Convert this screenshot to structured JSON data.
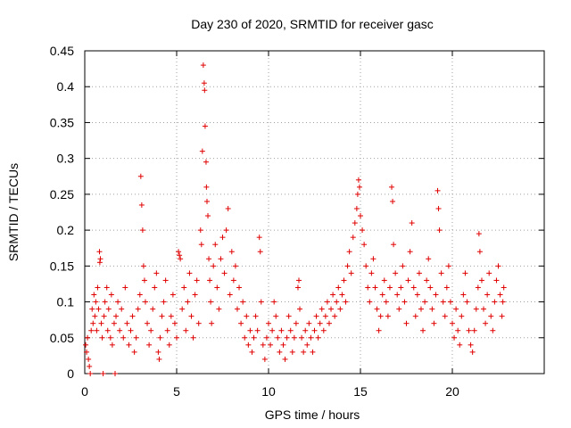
{
  "chart_data": {
    "type": "scatter",
    "title": "Day 230 of 2020, SRMTID for receiver gasc",
    "xlabel": "GPS time / hours",
    "ylabel": "SRMTID / TECUs",
    "xlim": [
      0,
      25
    ],
    "ylim": [
      0,
      0.45
    ],
    "xticks": [
      0,
      5,
      10,
      15,
      20
    ],
    "xtick_labels": [
      "0",
      "5",
      "10",
      "15",
      "20"
    ],
    "yticks": [
      0,
      0.05,
      0.1,
      0.15,
      0.2,
      0.25,
      0.3,
      0.35,
      0.4,
      0.45
    ],
    "ytick_labels": [
      "0",
      "0.05",
      "0.1",
      "0.15",
      "0.2",
      "0.25",
      "0.3",
      "0.35",
      "0.4",
      "0.45"
    ],
    "grid": true,
    "marker": "plus",
    "color": "#e00000",
    "series": [
      {
        "name": "SRMTID",
        "points": [
          [
            0.05,
            0.04
          ],
          [
            0.1,
            0.03
          ],
          [
            0.15,
            0.05
          ],
          [
            0.2,
            0.02
          ],
          [
            0.25,
            0.01
          ],
          [
            0.3,
            0.0
          ],
          [
            0.35,
            0.06
          ],
          [
            0.4,
            0.09
          ],
          [
            0.45,
            0.07
          ],
          [
            0.5,
            0.11
          ],
          [
            0.55,
            0.08
          ],
          [
            0.6,
            0.1
          ],
          [
            0.65,
            0.06
          ],
          [
            0.7,
            0.12
          ],
          [
            0.75,
            0.09
          ],
          [
            0.8,
            0.17
          ],
          [
            0.82,
            0.155
          ],
          [
            0.85,
            0.16
          ],
          [
            0.9,
            0.07
          ],
          [
            0.95,
            0.05
          ],
          [
            1.0,
            0.0
          ],
          [
            1.05,
            0.08
          ],
          [
            1.1,
            0.1
          ],
          [
            1.2,
            0.12
          ],
          [
            1.25,
            0.06
          ],
          [
            1.3,
            0.09
          ],
          [
            1.4,
            0.05
          ],
          [
            1.45,
            0.11
          ],
          [
            1.5,
            0.04
          ],
          [
            1.6,
            0.07
          ],
          [
            1.65,
            0.0
          ],
          [
            1.7,
            0.08
          ],
          [
            1.8,
            0.1
          ],
          [
            1.9,
            0.06
          ],
          [
            2.0,
            0.09
          ],
          [
            2.1,
            0.05
          ],
          [
            2.2,
            0.12
          ],
          [
            2.3,
            0.07
          ],
          [
            2.4,
            0.04
          ],
          [
            2.5,
            0.06
          ],
          [
            2.6,
            0.08
          ],
          [
            2.7,
            0.03
          ],
          [
            2.8,
            0.05
          ],
          [
            2.9,
            0.09
          ],
          [
            3.0,
            0.11
          ],
          [
            3.05,
            0.275
          ],
          [
            3.1,
            0.235
          ],
          [
            3.15,
            0.2
          ],
          [
            3.2,
            0.15
          ],
          [
            3.25,
            0.13
          ],
          [
            3.3,
            0.1
          ],
          [
            3.4,
            0.07
          ],
          [
            3.5,
            0.04
          ],
          [
            3.6,
            0.06
          ],
          [
            3.7,
            0.09
          ],
          [
            3.8,
            0.12
          ],
          [
            3.9,
            0.14
          ],
          [
            4.0,
            0.03
          ],
          [
            4.05,
            0.02
          ],
          [
            4.1,
            0.05
          ],
          [
            4.2,
            0.08
          ],
          [
            4.3,
            0.1
          ],
          [
            4.4,
            0.13
          ],
          [
            4.5,
            0.06
          ],
          [
            4.6,
            0.04
          ],
          [
            4.7,
            0.08
          ],
          [
            4.8,
            0.11
          ],
          [
            4.9,
            0.07
          ],
          [
            5.0,
            0.05
          ],
          [
            5.1,
            0.17
          ],
          [
            5.15,
            0.165
          ],
          [
            5.2,
            0.16
          ],
          [
            5.3,
            0.09
          ],
          [
            5.4,
            0.12
          ],
          [
            5.5,
            0.06
          ],
          [
            5.6,
            0.1
          ],
          [
            5.7,
            0.14
          ],
          [
            5.8,
            0.08
          ],
          [
            5.9,
            0.05
          ],
          [
            6.0,
            0.11
          ],
          [
            6.1,
            0.13
          ],
          [
            6.2,
            0.07
          ],
          [
            6.3,
            0.2
          ],
          [
            6.35,
            0.18
          ],
          [
            6.4,
            0.31
          ],
          [
            6.45,
            0.43
          ],
          [
            6.5,
            0.405
          ],
          [
            6.52,
            0.395
          ],
          [
            6.55,
            0.345
          ],
          [
            6.6,
            0.295
          ],
          [
            6.62,
            0.26
          ],
          [
            6.65,
            0.24
          ],
          [
            6.7,
            0.22
          ],
          [
            6.75,
            0.16
          ],
          [
            6.8,
            0.13
          ],
          [
            6.85,
            0.1
          ],
          [
            6.9,
            0.07
          ],
          [
            7.0,
            0.15
          ],
          [
            7.1,
            0.18
          ],
          [
            7.2,
            0.12
          ],
          [
            7.3,
            0.09
          ],
          [
            7.4,
            0.16
          ],
          [
            7.5,
            0.19
          ],
          [
            7.6,
            0.14
          ],
          [
            7.7,
            0.2
          ],
          [
            7.8,
            0.23
          ],
          [
            7.9,
            0.11
          ],
          [
            8.0,
            0.17
          ],
          [
            8.1,
            0.13
          ],
          [
            8.2,
            0.15
          ],
          [
            8.3,
            0.09
          ],
          [
            8.4,
            0.12
          ],
          [
            8.5,
            0.07
          ],
          [
            8.6,
            0.1
          ],
          [
            8.7,
            0.05
          ],
          [
            8.8,
            0.08
          ],
          [
            8.9,
            0.04
          ],
          [
            9.0,
            0.06
          ],
          [
            9.1,
            0.03
          ],
          [
            9.2,
            0.05
          ],
          [
            9.3,
            0.08
          ],
          [
            9.4,
            0.06
          ],
          [
            9.5,
            0.19
          ],
          [
            9.55,
            0.17
          ],
          [
            9.6,
            0.1
          ],
          [
            9.7,
            0.04
          ],
          [
            9.8,
            0.02
          ],
          [
            9.9,
            0.05
          ],
          [
            10.0,
            0.07
          ],
          [
            10.1,
            0.04
          ],
          [
            10.2,
            0.06
          ],
          [
            10.3,
            0.1
          ],
          [
            10.4,
            0.08
          ],
          [
            10.5,
            0.05
          ],
          [
            10.6,
            0.03
          ],
          [
            10.7,
            0.06
          ],
          [
            10.8,
            0.04
          ],
          [
            10.9,
            0.02
          ],
          [
            11.0,
            0.05
          ],
          [
            11.1,
            0.08
          ],
          [
            11.2,
            0.06
          ],
          [
            11.3,
            0.03
          ],
          [
            11.4,
            0.05
          ],
          [
            11.5,
            0.07
          ],
          [
            11.6,
            0.12
          ],
          [
            11.65,
            0.13
          ],
          [
            11.7,
            0.09
          ],
          [
            11.8,
            0.05
          ],
          [
            11.9,
            0.03
          ],
          [
            12.0,
            0.06
          ],
          [
            12.1,
            0.04
          ],
          [
            12.2,
            0.07
          ],
          [
            12.3,
            0.05
          ],
          [
            12.4,
            0.03
          ],
          [
            12.5,
            0.06
          ],
          [
            12.6,
            0.08
          ],
          [
            12.7,
            0.05
          ],
          [
            12.8,
            0.07
          ],
          [
            12.9,
            0.09
          ],
          [
            13.0,
            0.06
          ],
          [
            13.1,
            0.08
          ],
          [
            13.2,
            0.1
          ],
          [
            13.3,
            0.07
          ],
          [
            13.4,
            0.09
          ],
          [
            13.5,
            0.11
          ],
          [
            13.6,
            0.08
          ],
          [
            13.7,
            0.1
          ],
          [
            13.8,
            0.12
          ],
          [
            13.9,
            0.09
          ],
          [
            14.0,
            0.11
          ],
          [
            14.1,
            0.13
          ],
          [
            14.2,
            0.1
          ],
          [
            14.3,
            0.15
          ],
          [
            14.4,
            0.17
          ],
          [
            14.5,
            0.14
          ],
          [
            14.6,
            0.19
          ],
          [
            14.7,
            0.21
          ],
          [
            14.8,
            0.23
          ],
          [
            14.85,
            0.25
          ],
          [
            14.9,
            0.27
          ],
          [
            14.95,
            0.26
          ],
          [
            15.0,
            0.22
          ],
          [
            15.1,
            0.2
          ],
          [
            15.2,
            0.18
          ],
          [
            15.3,
            0.15
          ],
          [
            15.4,
            0.12
          ],
          [
            15.5,
            0.1
          ],
          [
            15.6,
            0.14
          ],
          [
            15.7,
            0.16
          ],
          [
            15.8,
            0.12
          ],
          [
            15.9,
            0.09
          ],
          [
            16.0,
            0.06
          ],
          [
            16.1,
            0.08
          ],
          [
            16.2,
            0.11
          ],
          [
            16.3,
            0.13
          ],
          [
            16.4,
            0.1
          ],
          [
            16.5,
            0.08
          ],
          [
            16.6,
            0.12
          ],
          [
            16.7,
            0.26
          ],
          [
            16.75,
            0.24
          ],
          [
            16.8,
            0.18
          ],
          [
            16.9,
            0.14
          ],
          [
            17.0,
            0.11
          ],
          [
            17.1,
            0.09
          ],
          [
            17.2,
            0.12
          ],
          [
            17.3,
            0.15
          ],
          [
            17.4,
            0.1
          ],
          [
            17.5,
            0.07
          ],
          [
            17.6,
            0.13
          ],
          [
            17.7,
            0.17
          ],
          [
            17.8,
            0.21
          ],
          [
            17.9,
            0.12
          ],
          [
            18.0,
            0.08
          ],
          [
            18.1,
            0.11
          ],
          [
            18.2,
            0.14
          ],
          [
            18.3,
            0.09
          ],
          [
            18.4,
            0.06
          ],
          [
            18.5,
            0.1
          ],
          [
            18.6,
            0.13
          ],
          [
            18.7,
            0.16
          ],
          [
            18.8,
            0.12
          ],
          [
            18.9,
            0.09
          ],
          [
            19.0,
            0.07
          ],
          [
            19.1,
            0.11
          ],
          [
            19.2,
            0.255
          ],
          [
            19.25,
            0.23
          ],
          [
            19.3,
            0.2
          ],
          [
            19.4,
            0.14
          ],
          [
            19.5,
            0.1
          ],
          [
            19.6,
            0.08
          ],
          [
            19.7,
            0.12
          ],
          [
            19.8,
            0.15
          ],
          [
            19.9,
            0.1
          ],
          [
            20.0,
            0.07
          ],
          [
            20.1,
            0.05
          ],
          [
            20.2,
            0.09
          ],
          [
            20.3,
            0.06
          ],
          [
            20.4,
            0.04
          ],
          [
            20.5,
            0.08
          ],
          [
            20.6,
            0.11
          ],
          [
            20.7,
            0.14
          ],
          [
            20.8,
            0.1
          ],
          [
            20.9,
            0.06
          ],
          [
            21.0,
            0.04
          ],
          [
            21.1,
            0.03
          ],
          [
            21.2,
            0.06
          ],
          [
            21.3,
            0.09
          ],
          [
            21.4,
            0.12
          ],
          [
            21.45,
            0.195
          ],
          [
            21.5,
            0.17
          ],
          [
            21.6,
            0.13
          ],
          [
            21.7,
            0.09
          ],
          [
            21.8,
            0.07
          ],
          [
            21.9,
            0.11
          ],
          [
            22.0,
            0.14
          ],
          [
            22.1,
            0.08
          ],
          [
            22.2,
            0.06
          ],
          [
            22.3,
            0.1
          ],
          [
            22.4,
            0.13
          ],
          [
            22.5,
            0.15
          ],
          [
            22.6,
            0.11
          ],
          [
            22.7,
            0.08
          ],
          [
            22.75,
            0.1
          ],
          [
            22.8,
            0.12
          ]
        ]
      }
    ]
  }
}
